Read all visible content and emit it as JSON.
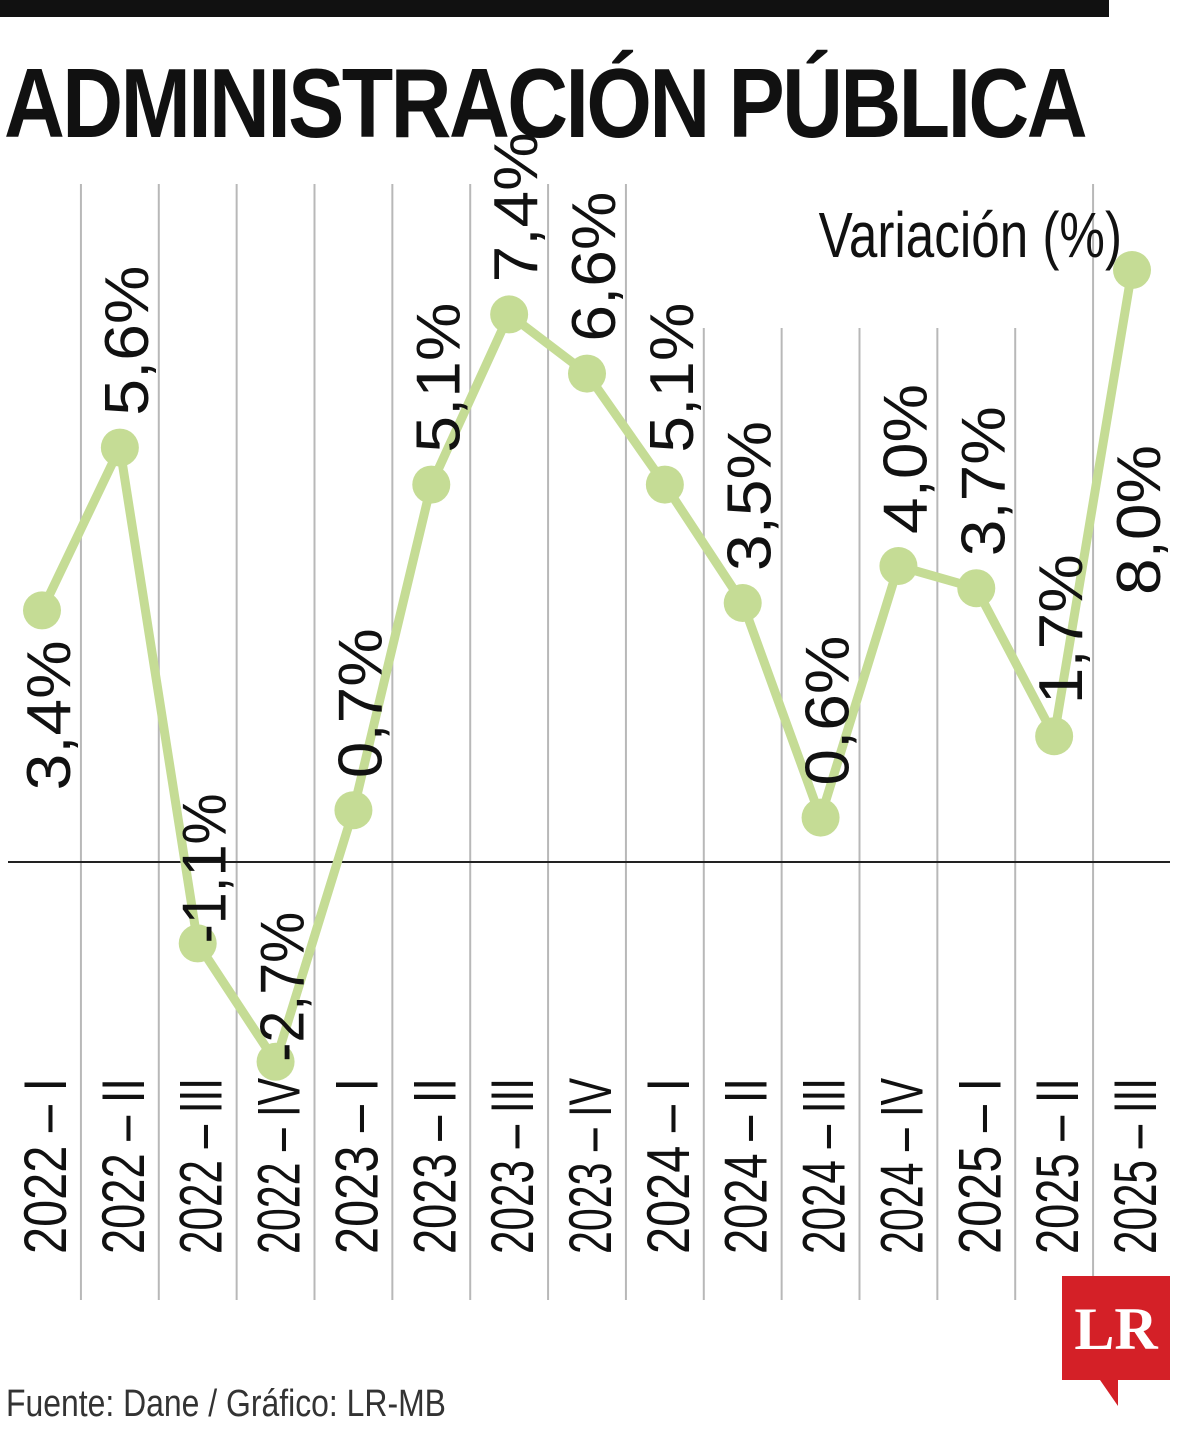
{
  "title": "ADMINISTRACIÓN PÚBLICA",
  "source": "Fuente: Dane / Gráfico: LR-MB",
  "logo": {
    "text": "LR",
    "color": "#d42027"
  },
  "chart_data": {
    "type": "line",
    "ylabel": "Variación (%)",
    "categories": [
      "2022 – I",
      "2022 – II",
      "2022 – III",
      "2022 – IV",
      "2023 – I",
      "2023 – II",
      "2023 – III",
      "2023 – IV",
      "2024 – I",
      "2024 – II",
      "2024 – III",
      "2024 – IV",
      "2025 – I",
      "2025 – II",
      "2025 – III"
    ],
    "series": [
      {
        "color": "#c5dc95",
        "values": [
          3.4,
          5.6,
          -1.1,
          -2.7,
          0.7,
          5.1,
          7.4,
          6.6,
          5.1,
          3.5,
          0.6,
          4.0,
          3.7,
          1.7,
          8.0
        ]
      }
    ],
    "data_labels": [
      "3,4%",
      "5,6%",
      "-1,1%",
      "-2,7%",
      "0,7%",
      "5,1%",
      "7,4%",
      "6,6%",
      "5,1%",
      "3,5%",
      "0,6%",
      "4,0%",
      "3,7%",
      "1,7%",
      "8,0%"
    ],
    "ylim": [
      -3.0,
      8.5
    ],
    "grid": true,
    "zero_line": true
  }
}
